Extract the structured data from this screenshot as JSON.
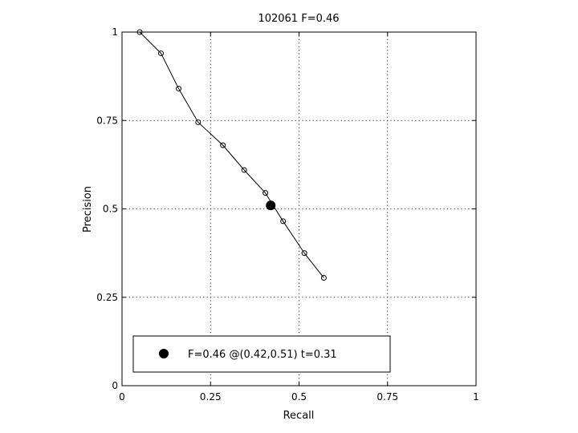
{
  "chart_data": {
    "type": "line",
    "title": "102061 F=0.46",
    "xlabel": "Recall",
    "ylabel": "Precision",
    "xlim": [
      0,
      1
    ],
    "ylim": [
      0,
      1
    ],
    "grid": true,
    "xticks": [
      0,
      0.25,
      0.5,
      0.75,
      1
    ],
    "yticks": [
      0,
      0.25,
      0.5,
      0.75,
      1
    ],
    "xtick_labels": [
      "0",
      "0.25",
      "0.5",
      "0.75",
      "1"
    ],
    "ytick_labels": [
      "0",
      "0.25",
      "0.5",
      "0.75",
      "1"
    ],
    "series": [
      {
        "x": [
          0.05,
          0.11,
          0.16,
          0.215,
          0.285,
          0.345,
          0.405,
          0.455,
          0.515,
          0.57
        ],
        "y": [
          1.0,
          0.94,
          0.84,
          0.745,
          0.68,
          0.61,
          0.545,
          0.465,
          0.375,
          0.305
        ],
        "marker": "open-circle",
        "color": "#000000"
      }
    ],
    "best_point": {
      "x": 0.42,
      "y": 0.51,
      "marker": "filled-circle",
      "color": "#000000"
    },
    "legend": {
      "text": "F=0.46 @(0.42,0.51) t=0.31",
      "placement": "bottom-left"
    }
  }
}
